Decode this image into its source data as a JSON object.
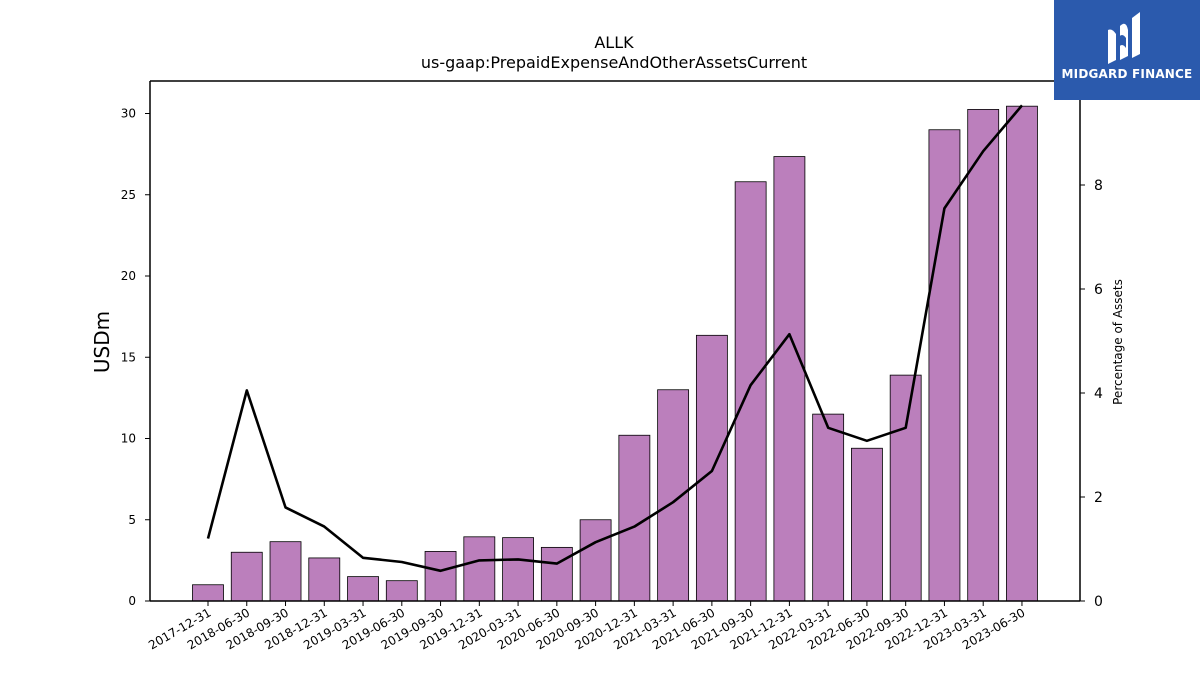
{
  "brand": {
    "name": "MIDGARD FINANCE",
    "bg_color": "#2b5aad"
  },
  "chart_data": {
    "type": "bar",
    "title": "ALLK",
    "subtitle": "us-gaap:PrepaidExpenseAndOtherAssetsCurrent",
    "ylabel": "USDm",
    "y2label": "Percentage of Assets",
    "ylim": [
      0,
      32
    ],
    "y2lim": [
      0,
      10
    ],
    "yticks": [
      0,
      5,
      10,
      15,
      20,
      25,
      30
    ],
    "y2ticks": [
      0,
      2,
      4,
      6,
      8
    ],
    "grid": false,
    "categories": [
      "2017-12-31",
      "2018-06-30",
      "2018-09-30",
      "2018-12-31",
      "2019-03-31",
      "2019-06-30",
      "2019-09-30",
      "2019-12-31",
      "2020-03-31",
      "2020-06-30",
      "2020-09-30",
      "2020-12-31",
      "2021-03-31",
      "2021-06-30",
      "2021-09-30",
      "2021-12-31",
      "2022-03-31",
      "2022-06-30",
      "2022-09-30",
      "2022-12-31",
      "2023-03-31",
      "2023-06-30"
    ],
    "series": [
      {
        "type": "bar",
        "axis": "left",
        "color": "#bb7fbc",
        "values": [
          1.0,
          3.0,
          3.65,
          2.65,
          1.5,
          1.25,
          3.05,
          3.95,
          3.9,
          3.3,
          5.0,
          10.2,
          13.0,
          16.35,
          25.8,
          27.35,
          11.5,
          9.4,
          13.9,
          29.0,
          30.25,
          30.45
        ]
      },
      {
        "type": "line",
        "axis": "right",
        "color": "#000000",
        "values": [
          1.2,
          4.05,
          1.8,
          1.43,
          0.83,
          0.75,
          0.58,
          0.78,
          0.8,
          0.72,
          1.13,
          1.43,
          1.9,
          2.5,
          4.15,
          5.13,
          3.33,
          3.08,
          3.33,
          7.55,
          8.65,
          9.53
        ]
      }
    ]
  }
}
